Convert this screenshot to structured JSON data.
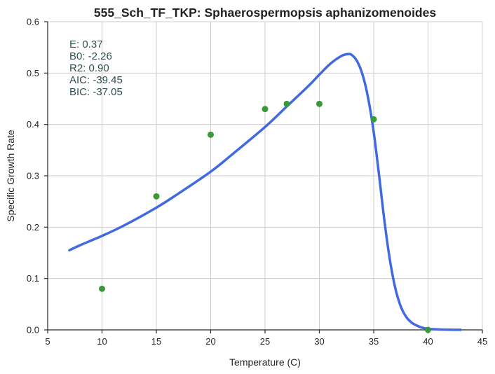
{
  "chart_data": {
    "type": "scatter",
    "title": "555_Sch_TF_TKP: Sphaerospermopsis aphanizomenoides",
    "xlabel": "Temperature (C)",
    "ylabel": "Specific Growth Rate",
    "xlim": [
      5,
      45
    ],
    "ylim": [
      0,
      0.6
    ],
    "xticks": [
      5,
      10,
      15,
      20,
      25,
      30,
      35,
      40,
      45
    ],
    "yticks": [
      0.0,
      0.1,
      0.2,
      0.3,
      0.4,
      0.5,
      0.6
    ],
    "xtick_labels": [
      "5",
      "10",
      "15",
      "20",
      "25",
      "30",
      "35",
      "40",
      "45"
    ],
    "ytick_labels": [
      "0.0",
      "0.1",
      "0.2",
      "0.3",
      "0.4",
      "0.5",
      "0.6"
    ],
    "grid": true,
    "points": {
      "color": "#3a9a3a",
      "x": [
        10,
        15,
        20,
        25,
        27,
        30,
        35,
        40
      ],
      "y": [
        0.08,
        0.26,
        0.38,
        0.43,
        0.44,
        0.44,
        0.41,
        0.0
      ]
    },
    "fit": {
      "color": "#4169e1",
      "x": [
        7,
        8,
        10,
        12,
        15,
        17,
        20,
        22,
        25,
        27,
        29,
        30,
        31,
        32,
        32.6,
        33,
        33.5,
        34,
        34.5,
        35,
        35.5,
        36,
        36.5,
        37,
        37.5,
        38,
        38.5,
        39,
        39.5,
        40,
        41,
        42,
        43
      ],
      "y": [
        0.155,
        0.165,
        0.183,
        0.203,
        0.238,
        0.265,
        0.308,
        0.342,
        0.395,
        0.435,
        0.475,
        0.497,
        0.518,
        0.533,
        0.537,
        0.535,
        0.522,
        0.495,
        0.45,
        0.385,
        0.3,
        0.21,
        0.135,
        0.08,
        0.045,
        0.025,
        0.014,
        0.008,
        0.004,
        0.002,
        0.0008,
        0.0003,
        0.0001
      ]
    },
    "annotations": [
      {
        "label": "E:",
        "value": "0.37"
      },
      {
        "label": "B0:",
        "value": "-2.26"
      },
      {
        "label": "R2:",
        "value": "0.90"
      },
      {
        "label": "AIC:",
        "value": "-39.45"
      },
      {
        "label": "BIC:",
        "value": "-37.05"
      }
    ]
  }
}
